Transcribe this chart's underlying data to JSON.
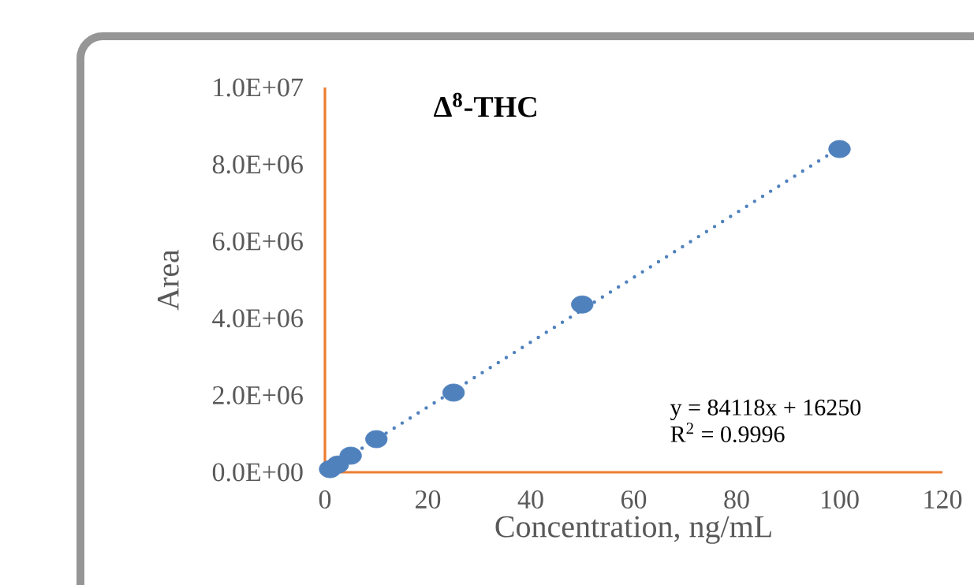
{
  "chart_data": {
    "type": "scatter",
    "title": "Δ$^{8}$-THC",
    "xlabel": "Concentration, ng/mL",
    "ylabel": "Area",
    "xlim": [
      0,
      120
    ],
    "xticks": [
      0,
      20,
      40,
      60,
      80,
      100,
      120
    ],
    "ylim": [
      0,
      10000000
    ],
    "yticks": [
      {
        "value": 0,
        "label": "0.0E+00"
      },
      {
        "value": 2000000,
        "label": "2.0E+06"
      },
      {
        "value": 4000000,
        "label": "4.0E+06"
      },
      {
        "value": 6000000,
        "label": "6.0E+06"
      },
      {
        "value": 8000000,
        "label": "8.0E+06"
      },
      {
        "value": 10000000,
        "label": "1.0E+07"
      }
    ],
    "series": [
      {
        "color": "#4f81bd",
        "marker": "circle",
        "x": [
          1,
          2.5,
          5,
          10,
          25,
          50,
          100
        ],
        "values": [
          80000,
          200000,
          430000,
          860000,
          2070000,
          4360000,
          8400000
        ]
      },
      {
        "type": "line",
        "color": "#4f81bd",
        "line_style": "dotted",
        "marker": "none",
        "x": [
          1,
          100
        ],
        "values": [
          100000,
          8430000
        ]
      }
    ],
    "annotations": [
      "y = 84118x + 16250",
      "R$^{2}$ = 0.9996"
    ],
    "grid": false
  }
}
